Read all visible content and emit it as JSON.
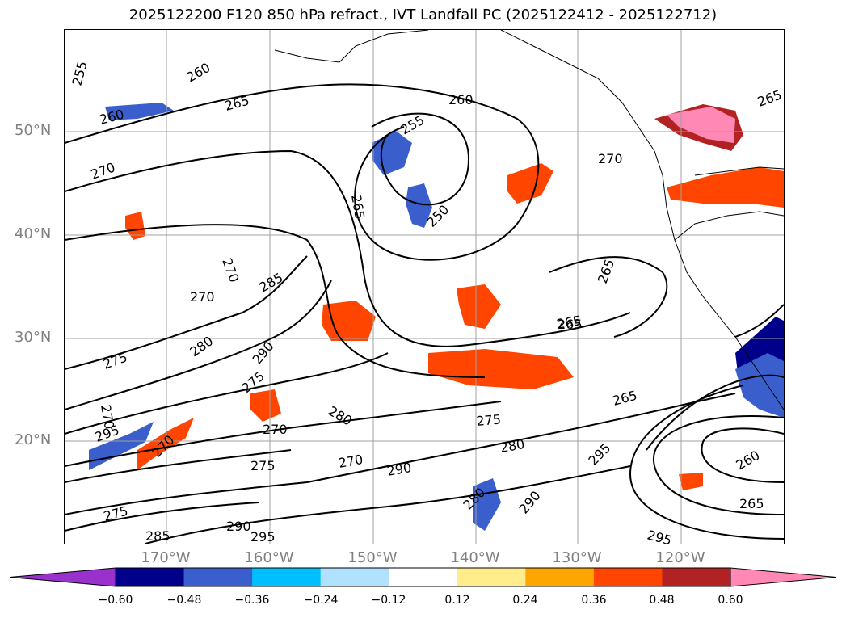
{
  "title": "2025122200 F120 850 hPa refract., IVT Landfall PC (2025122412 - 2025122712)",
  "lat_labels": [
    "50°N",
    "40°N",
    "30°N",
    "20°N"
  ],
  "lon_labels": [
    "170°W",
    "160°W",
    "150°W",
    "140°W",
    "130°W",
    "120°W"
  ],
  "contour_labels": [
    "255",
    "260",
    "265",
    "260",
    "270",
    "265",
    "255",
    "250",
    "260",
    "265",
    "270",
    "270",
    "285",
    "270",
    "265",
    "265",
    "280",
    "290",
    "275",
    "270",
    "275",
    "295",
    "280",
    "270",
    "270",
    "275",
    "280",
    "270",
    "290",
    "275",
    "280",
    "290",
    "265",
    "295",
    "260",
    "265",
    "275",
    "290",
    "285",
    "295",
    "295",
    "265"
  ],
  "colorbar": {
    "tick_labels": [
      "−0.60",
      "−0.48",
      "−0.36",
      "−0.24",
      "−0.12",
      "0.12",
      "0.24",
      "0.36",
      "0.48",
      "0.60"
    ],
    "colors": [
      "#9932cc",
      "#00008b",
      "#3a5fcd",
      "#00bfff",
      "#b0e2ff",
      "#ffffff",
      "#ffec8b",
      "#ffa500",
      "#ff4500",
      "#b22222",
      "#ff88b4"
    ]
  }
}
